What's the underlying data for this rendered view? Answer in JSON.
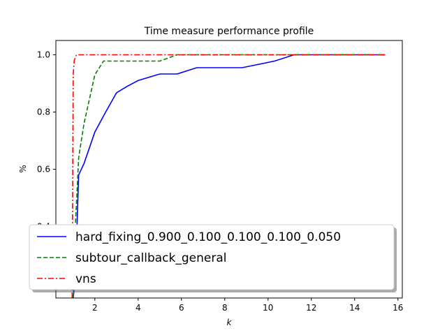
{
  "chart_data": {
    "type": "line",
    "title": "Time measure performance profile",
    "xlabel": "k",
    "ylabel": "%",
    "xlim": [
      0.2,
      16.2
    ],
    "ylim": [
      0.15,
      1.05
    ],
    "xticks": [
      2,
      4,
      6,
      8,
      10,
      12,
      14,
      16
    ],
    "yticks": [
      0.4,
      0.6,
      0.8,
      1.0
    ],
    "xtick_labels": [
      "2",
      "4",
      "6",
      "8",
      "10",
      "12",
      "14",
      "16"
    ],
    "ytick_labels": [
      "0.4",
      "0.6",
      "0.8",
      "1.0"
    ],
    "grid": false,
    "legend_position": "lower-left",
    "series": [
      {
        "name": "hard_fixing_0.900_0.100_0.100_0.100_0.050",
        "color": "#0000ff",
        "style": "solid",
        "x": [
          1.0,
          1.1,
          1.25,
          1.5,
          2.0,
          2.5,
          3.0,
          3.5,
          4.0,
          5.0,
          5.8,
          6.7,
          7.5,
          8.8,
          10.3,
          11.2,
          15.4
        ],
        "y": [
          0.15,
          0.22,
          0.58,
          0.62,
          0.73,
          0.8,
          0.867,
          0.89,
          0.91,
          0.933,
          0.933,
          0.955,
          0.955,
          0.955,
          0.978,
          1.0,
          1.0
        ]
      },
      {
        "name": "subtour_callback_general",
        "color": "#008000",
        "style": "dashed",
        "x": [
          1.0,
          1.1,
          1.25,
          1.5,
          2.0,
          2.4,
          3.0,
          4.0,
          5.0,
          5.8,
          15.4
        ],
        "y": [
          0.15,
          0.4,
          0.64,
          0.76,
          0.93,
          0.978,
          0.978,
          0.978,
          0.978,
          1.0,
          1.0
        ]
      },
      {
        "name": "vns",
        "color": "#ff0000",
        "style": "dashdot",
        "x": [
          0.95,
          1.0,
          1.05,
          1.15,
          15.4
        ],
        "y": [
          0.15,
          0.93,
          0.98,
          1.0,
          1.0
        ]
      }
    ]
  }
}
